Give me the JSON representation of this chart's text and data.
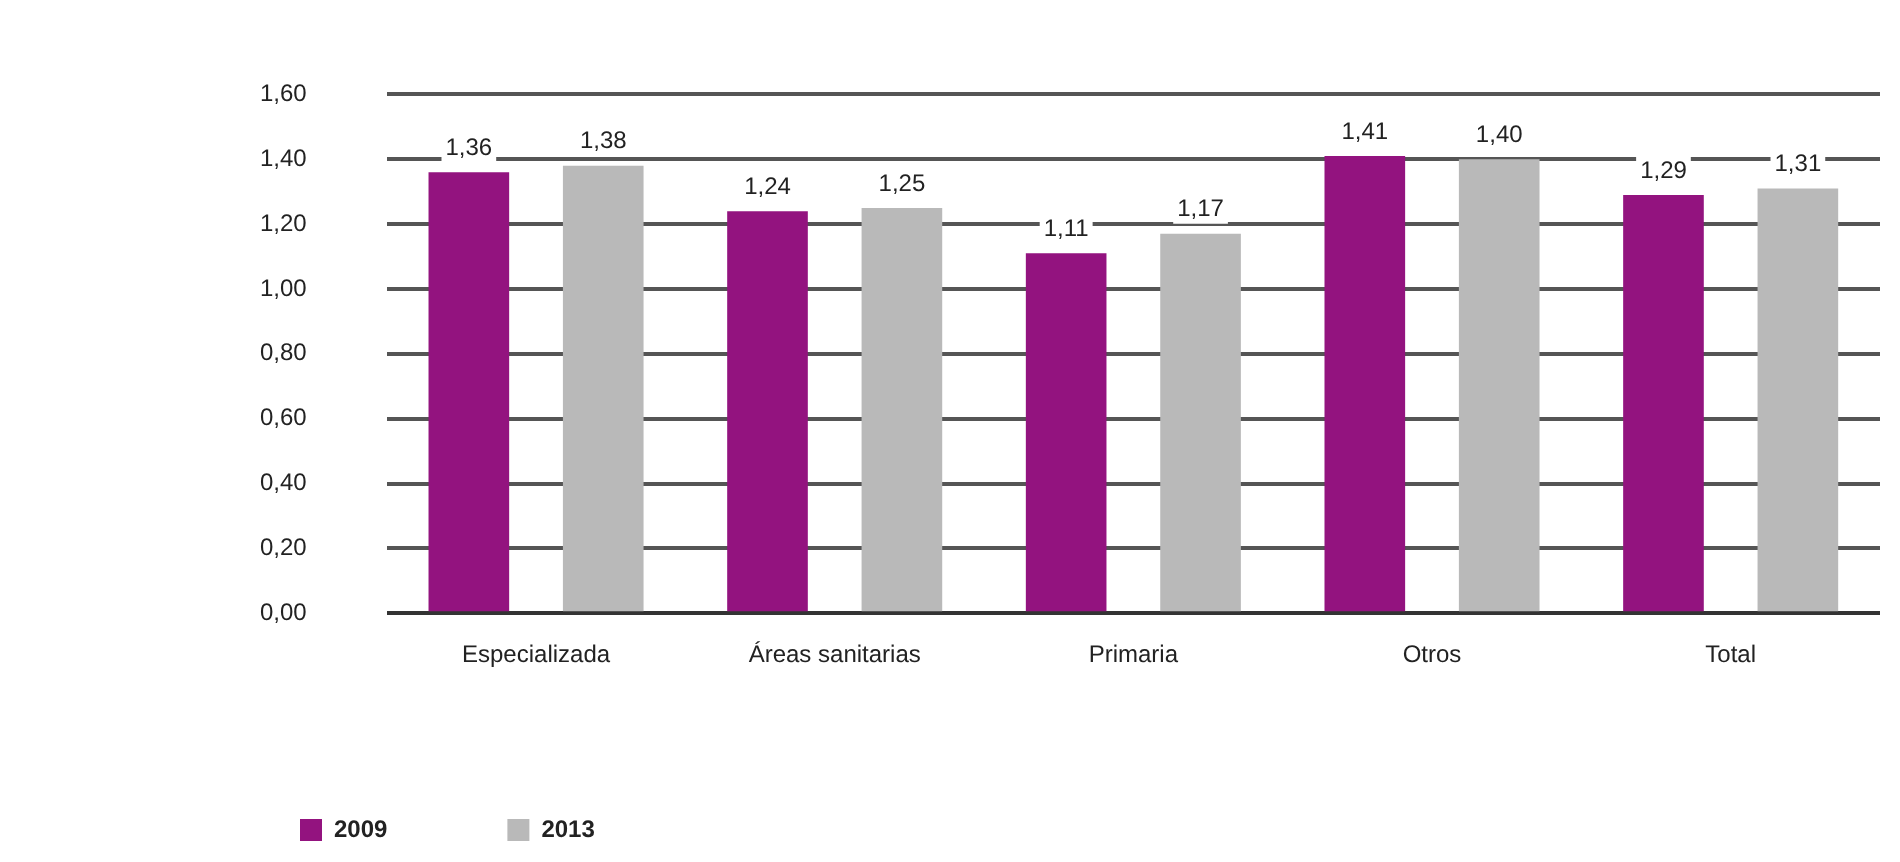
{
  "chart_data": {
    "type": "bar",
    "categories": [
      "Especializada",
      "Áreas sanitarias",
      "Primaria",
      "Otros",
      "Total"
    ],
    "series": [
      {
        "name": "2009",
        "color": "#93137f",
        "values": [
          1.36,
          1.24,
          1.11,
          1.41,
          1.29
        ],
        "value_labels": [
          "1,36",
          "1,24",
          "1,11",
          "1,41",
          "1,29"
        ]
      },
      {
        "name": "2013",
        "color": "#b9b9b9",
        "values": [
          1.38,
          1.25,
          1.17,
          1.4,
          1.31
        ],
        "value_labels": [
          "1,38",
          "1,25",
          "1,17",
          "1,40",
          "1,31"
        ]
      }
    ],
    "ylim": [
      0,
      1.6
    ],
    "yticks": [
      {
        "value": 0,
        "label": "0,00"
      },
      {
        "value": 0.2,
        "label": "0,20"
      },
      {
        "value": 0.4,
        "label": "0,40"
      },
      {
        "value": 0.6,
        "label": "0,60"
      },
      {
        "value": 0.8,
        "label": "0,80"
      },
      {
        "value": 1.0,
        "label": "1,00"
      },
      {
        "value": 1.2,
        "label": "1,20"
      },
      {
        "value": 1.4,
        "label": "1,40"
      },
      {
        "value": 1.6,
        "label": "1,60"
      }
    ],
    "grid": "y",
    "legend": "bottom left"
  }
}
